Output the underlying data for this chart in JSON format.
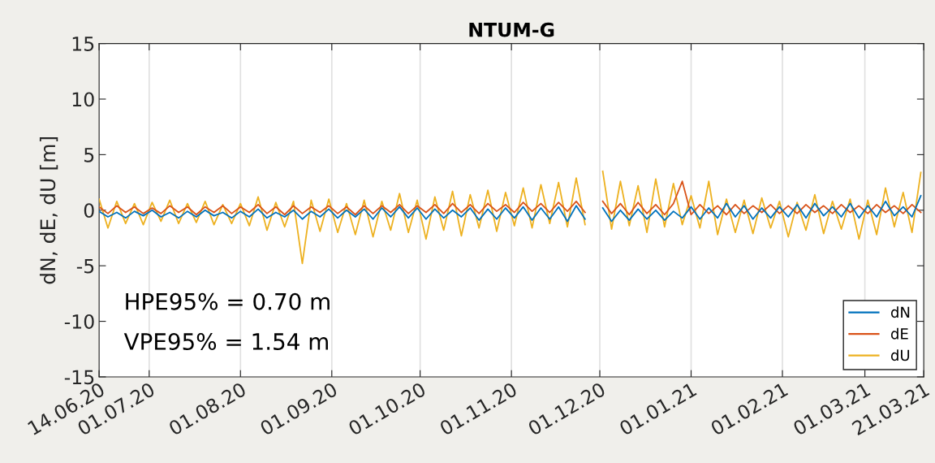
{
  "chart_data": {
    "type": "line",
    "title": "NTUM-G",
    "ylabel": "dN, dE, dU [m]",
    "x": [
      "2020-06-14",
      "2020-06-17",
      "2020-06-20",
      "2020-06-23",
      "2020-06-26",
      "2020-06-29",
      "2020-07-02",
      "2020-07-05",
      "2020-07-08",
      "2020-07-11",
      "2020-07-14",
      "2020-07-17",
      "2020-07-20",
      "2020-07-23",
      "2020-07-26",
      "2020-07-29",
      "2020-08-01",
      "2020-08-04",
      "2020-08-07",
      "2020-08-10",
      "2020-08-13",
      "2020-08-16",
      "2020-08-19",
      "2020-08-22",
      "2020-08-25",
      "2020-08-28",
      "2020-08-31",
      "2020-09-03",
      "2020-09-06",
      "2020-09-09",
      "2020-09-12",
      "2020-09-15",
      "2020-09-18",
      "2020-09-21",
      "2020-09-24",
      "2020-09-27",
      "2020-09-30",
      "2020-10-03",
      "2020-10-06",
      "2020-10-09",
      "2020-10-12",
      "2020-10-15",
      "2020-10-18",
      "2020-10-21",
      "2020-10-24",
      "2020-10-27",
      "2020-10-30",
      "2020-11-02",
      "2020-11-05",
      "2020-11-08",
      "2020-11-11",
      "2020-11-14",
      "2020-11-17",
      "2020-11-20",
      "2020-11-23",
      "2020-11-26",
      "2020-11-29",
      "2020-12-02",
      "2020-12-05",
      "2020-12-08",
      "2020-12-11",
      "2020-12-14",
      "2020-12-17",
      "2020-12-20",
      "2020-12-23",
      "2020-12-26",
      "2020-12-29",
      "2021-01-01",
      "2021-01-04",
      "2021-01-07",
      "2021-01-10",
      "2021-01-13",
      "2021-01-16",
      "2021-01-19",
      "2021-01-22",
      "2021-01-25",
      "2021-01-28",
      "2021-01-31",
      "2021-02-03",
      "2021-02-06",
      "2021-02-09",
      "2021-02-12",
      "2021-02-15",
      "2021-02-18",
      "2021-02-21",
      "2021-02-24",
      "2021-02-27",
      "2021-03-02",
      "2021-03-05",
      "2021-03-08",
      "2021-03-11",
      "2021-03-14",
      "2021-03-17",
      "2021-03-20"
    ],
    "series": [
      {
        "name": "dN",
        "color": "#0072bd",
        "values": [
          -0.1,
          -0.6,
          -0.2,
          -0.7,
          -0.1,
          -0.5,
          0.0,
          -0.6,
          -0.2,
          -0.7,
          -0.1,
          -0.6,
          0.0,
          -0.5,
          -0.2,
          -0.7,
          -0.1,
          -0.6,
          0.1,
          -0.7,
          -0.2,
          -0.6,
          0.0,
          -0.8,
          -0.1,
          -0.6,
          0.1,
          -0.7,
          0.0,
          -0.6,
          0.1,
          -0.8,
          0.2,
          -0.6,
          0.3,
          -0.7,
          0.2,
          -0.8,
          0.1,
          -0.7,
          0.0,
          -0.6,
          0.2,
          -0.9,
          0.1,
          -0.8,
          0.2,
          -0.7,
          0.3,
          -0.9,
          0.2,
          -0.8,
          0.3,
          -1.0,
          0.4,
          -0.8,
          null,
          0.2,
          -1.0,
          0.0,
          -0.9,
          0.1,
          -0.8,
          0.0,
          -0.9,
          -0.1,
          -0.7,
          0.3,
          -0.8,
          0.2,
          -0.7,
          0.6,
          -0.6,
          0.4,
          -0.8,
          0.2,
          -0.7,
          0.3,
          -0.6,
          0.5,
          -0.7,
          0.6,
          -0.5,
          0.3,
          -0.6,
          0.6,
          -0.7,
          0.4,
          -0.6,
          0.8,
          -0.5,
          0.3,
          -0.6,
          1.3
        ]
      },
      {
        "name": "dE",
        "color": "#d95319",
        "values": [
          0.3,
          -0.3,
          0.4,
          -0.2,
          0.3,
          -0.3,
          0.2,
          -0.3,
          0.4,
          -0.2,
          0.3,
          -0.4,
          0.3,
          -0.2,
          0.4,
          -0.3,
          0.3,
          -0.2,
          0.5,
          -0.3,
          0.3,
          -0.4,
          0.4,
          -0.3,
          0.3,
          -0.2,
          0.4,
          -0.3,
          0.3,
          -0.4,
          0.4,
          -0.3,
          0.4,
          -0.2,
          0.5,
          -0.3,
          0.4,
          -0.2,
          0.5,
          -0.3,
          0.6,
          -0.2,
          0.5,
          -0.3,
          0.6,
          -0.1,
          0.5,
          -0.2,
          0.7,
          -0.1,
          0.6,
          -0.2,
          0.7,
          -0.1,
          0.8,
          -0.2,
          null,
          0.8,
          -0.3,
          0.6,
          -0.4,
          0.7,
          -0.3,
          0.5,
          -0.4,
          0.6,
          2.6,
          -0.4,
          0.5,
          -0.3,
          0.4,
          -0.4,
          0.5,
          -0.3,
          0.4,
          -0.2,
          0.5,
          -0.3,
          0.4,
          -0.3,
          0.5,
          -0.2,
          0.4,
          -0.3,
          0.5,
          -0.2,
          0.4,
          -0.3,
          0.5,
          -0.2,
          0.4,
          -0.3,
          0.5,
          -0.2
        ]
      },
      {
        "name": "dU",
        "color": "#edb120",
        "values": [
          1.0,
          -1.6,
          0.8,
          -1.2,
          0.6,
          -1.3,
          0.7,
          -1.0,
          0.9,
          -1.2,
          0.6,
          -1.1,
          0.8,
          -1.3,
          0.5,
          -1.2,
          0.6,
          -1.4,
          1.2,
          -1.8,
          0.7,
          -1.5,
          0.8,
          -4.8,
          0.9,
          -1.9,
          1.0,
          -2.0,
          0.6,
          -2.2,
          0.9,
          -2.4,
          0.8,
          -1.8,
          1.5,
          -2.0,
          0.9,
          -2.6,
          1.2,
          -1.8,
          1.7,
          -2.3,
          1.4,
          -1.6,
          1.8,
          -1.9,
          1.6,
          -1.4,
          2.0,
          -1.6,
          2.3,
          -1.2,
          2.5,
          -1.5,
          2.9,
          -1.3,
          null,
          3.5,
          -1.7,
          2.6,
          -1.4,
          2.2,
          -2.0,
          2.8,
          -1.5,
          2.4,
          -1.3,
          1.3,
          -1.6,
          2.6,
          -2.2,
          1.0,
          -2.0,
          0.9,
          -2.1,
          1.1,
          -1.6,
          0.8,
          -2.4,
          0.7,
          -1.8,
          1.4,
          -2.1,
          0.8,
          -1.7,
          1.0,
          -2.6,
          0.9,
          -2.2,
          2.0,
          -1.5,
          1.6,
          -2.0,
          3.4
        ]
      }
    ],
    "xlim": [
      "2020-06-14",
      "2021-03-21"
    ],
    "xticks": [
      {
        "value": "2020-06-14",
        "label": "14.06.20"
      },
      {
        "value": "2020-07-01",
        "label": "01.07.20"
      },
      {
        "value": "2020-08-01",
        "label": "01.08.20"
      },
      {
        "value": "2020-09-01",
        "label": "01.09.20"
      },
      {
        "value": "2020-10-01",
        "label": "01.10.20"
      },
      {
        "value": "2020-11-01",
        "label": "01.11.20"
      },
      {
        "value": "2020-12-01",
        "label": "01.12.20"
      },
      {
        "value": "2021-01-01",
        "label": "01.01.21"
      },
      {
        "value": "2021-02-01",
        "label": "01.02.21"
      },
      {
        "value": "2021-03-01",
        "label": "01.03.21"
      },
      {
        "value": "2021-03-21",
        "label": "21.03.21"
      }
    ],
    "ylim": [
      -15,
      15
    ],
    "yticks": [
      -15,
      -10,
      -5,
      0,
      5,
      10,
      15
    ],
    "grid": "x",
    "legend": "bottom right",
    "marker": "none",
    "line_style": "solid",
    "annotations": [
      "HPE95% = 0.70 m",
      "VPE95% = 1.54 m"
    ]
  }
}
